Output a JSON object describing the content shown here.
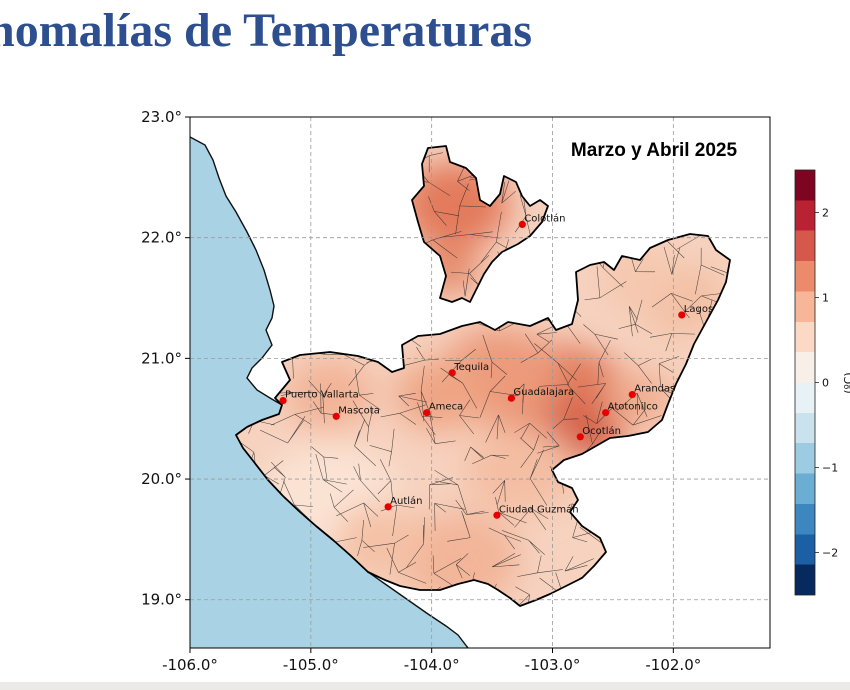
{
  "slide": {
    "title": "nomalías de Temperaturas"
  },
  "map": {
    "title": "Marzo y Abril 2025",
    "x_ticks": [
      "-106.0°",
      "-105.0°",
      "-104.0°",
      "-103.0°",
      "-102.0°"
    ],
    "y_ticks": [
      "23.0°",
      "22.0°",
      "21.0°",
      "20.0°",
      "19.0°"
    ],
    "extent": {
      "lon": [
        -106.0,
        -101.2
      ],
      "lat": [
        18.6,
        23.0
      ]
    },
    "grid": true,
    "colors": {
      "ocean": "#a9d3e4",
      "land_base": "#f6d2bf",
      "coast": "#111111",
      "border": "#000000",
      "city": "#e60000"
    },
    "cities": [
      {
        "name": "Colotlán",
        "lon": -103.25,
        "lat": 22.11
      },
      {
        "name": "Lagos",
        "lon": -101.93,
        "lat": 21.36
      },
      {
        "name": "Tequila",
        "lon": -103.83,
        "lat": 20.88
      },
      {
        "name": "Puerto Vallarta",
        "lon": -105.23,
        "lat": 20.65
      },
      {
        "name": "Guadalajara",
        "lon": -103.34,
        "lat": 20.67
      },
      {
        "name": "Arandas",
        "lon": -102.34,
        "lat": 20.7
      },
      {
        "name": "Mascota",
        "lon": -104.79,
        "lat": 20.52
      },
      {
        "name": "Ameca",
        "lon": -104.04,
        "lat": 20.55
      },
      {
        "name": "Atotonilco",
        "lon": -102.56,
        "lat": 20.55
      },
      {
        "name": "Ocotlán",
        "lon": -102.77,
        "lat": 20.35
      },
      {
        "name": "Autlán",
        "lon": -104.36,
        "lat": 19.77
      },
      {
        "name": "Ciudad Guzmán",
        "lon": -103.46,
        "lat": 19.7
      }
    ]
  },
  "colorbar": {
    "ticks": [
      "2",
      "1",
      "0",
      "−1",
      "−2"
    ],
    "range": [
      -2.5,
      2.5
    ],
    "colors": [
      "#062a5e",
      "#1b5fa5",
      "#3c87c0",
      "#6aaed3",
      "#9ccbe2",
      "#c9e2ee",
      "#e8f1f5",
      "#f9efe9",
      "#fcd9c4",
      "#f7b698",
      "#ec8a6c",
      "#d6584a",
      "#b92232",
      "#7e0522"
    ],
    "label": "(ºC)"
  },
  "chart_data": {
    "type": "heatmap",
    "title": "Marzo y Abril 2025",
    "x_ticks": [
      "-106.0°",
      "-105.0°",
      "-104.0°",
      "-103.0°",
      "-102.0°"
    ],
    "y_ticks": [
      "23.0°",
      "22.0°",
      "21.0°",
      "20.0°",
      "19.0°"
    ],
    "xlim": [
      -106.0,
      -101.2
    ],
    "ylim": [
      18.6,
      23.0
    ],
    "colorbar_range": [
      -2.5,
      2.5
    ],
    "colorbar_ticks": [
      2,
      1,
      0,
      -1,
      -2
    ],
    "grid": true
  }
}
